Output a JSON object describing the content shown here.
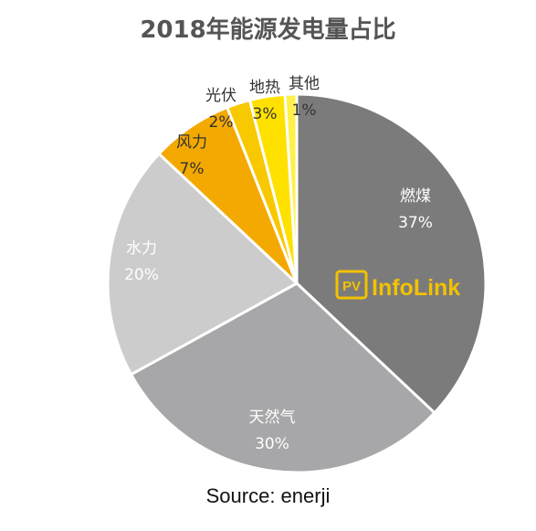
{
  "chart_data": {
    "type": "pie",
    "title": "2018年能源发电量占比",
    "slices": [
      {
        "label": "燃煤",
        "value": 37,
        "display": "37%",
        "color": "#7c7b7c",
        "text_color": "#ffffff"
      },
      {
        "label": "天然气",
        "value": 30,
        "display": "30%",
        "color": "#a7a6a8",
        "text_color": "#ffffff"
      },
      {
        "label": "水力",
        "value": 20,
        "display": "20%",
        "color": "#cdcccd",
        "text_color": "#ffffff"
      },
      {
        "label": "风力",
        "value": 7,
        "display": "7%",
        "color": "#f3a900",
        "text_color": "#333333"
      },
      {
        "label": "光伏",
        "value": 2,
        "display": "2%",
        "color": "#f8c800",
        "text_color": "#333333"
      },
      {
        "label": "地热",
        "value": 3,
        "display": "3%",
        "color": "#ffe100",
        "text_color": "#333333"
      },
      {
        "label": "其他",
        "value": 1,
        "display": "1%",
        "color": "#fff04a",
        "text_color": "#333333"
      }
    ],
    "start": "top",
    "direction": "clockwise"
  },
  "logo": {
    "badge": "PV",
    "text": "InfoLink",
    "color": "#f2c200"
  },
  "source": "Source: enerji"
}
